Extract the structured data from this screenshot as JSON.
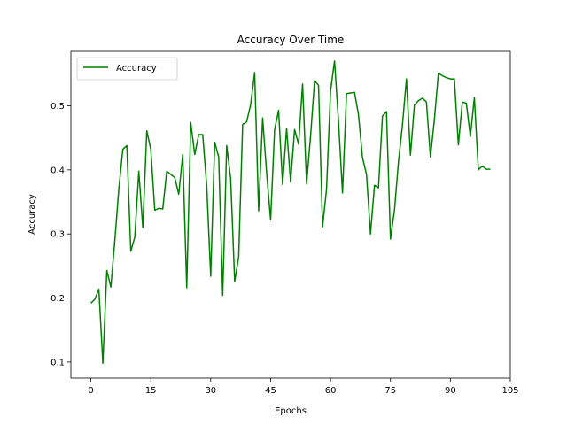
{
  "chart_data": {
    "type": "line",
    "title": "Accuracy Over Time",
    "xlabel": "Epochs",
    "ylabel": "Accuracy",
    "xlim": [
      -5,
      105
    ],
    "ylim": [
      0.075,
      0.585
    ],
    "xticks": [
      0,
      15,
      30,
      45,
      60,
      75,
      90,
      105
    ],
    "yticks": [
      0.1,
      0.2,
      0.3,
      0.4,
      0.5
    ],
    "ytick_labels": [
      "0.1",
      "0.2",
      "0.3",
      "0.4",
      "0.5"
    ],
    "legend": {
      "position": "top-left",
      "entries": [
        "Accuracy"
      ]
    },
    "grid": false,
    "colors": {
      "line": "#008000",
      "axis": "#000000"
    },
    "series": [
      {
        "name": "Accuracy",
        "x": [
          0,
          1,
          2,
          3,
          4,
          5,
          6,
          7,
          8,
          9,
          10,
          11,
          12,
          13,
          14,
          15,
          16,
          17,
          18,
          19,
          20,
          21,
          22,
          23,
          24,
          25,
          26,
          27,
          28,
          29,
          30,
          31,
          32,
          33,
          34,
          35,
          36,
          37,
          38,
          39,
          40,
          41,
          42,
          43,
          44,
          45,
          46,
          47,
          48,
          49,
          50,
          51,
          52,
          53,
          54,
          55,
          56,
          57,
          58,
          59,
          60,
          61,
          62,
          63,
          64,
          65,
          66,
          67,
          68,
          69,
          70,
          71,
          72,
          73,
          74,
          75,
          76,
          77,
          78,
          79,
          80,
          81,
          82,
          83,
          84,
          85,
          86,
          87,
          88,
          89,
          90,
          91,
          92,
          93,
          94,
          95,
          96,
          97,
          98,
          99,
          100
        ],
        "values": [
          0.192,
          0.198,
          0.214,
          0.098,
          0.243,
          0.217,
          0.29,
          0.37,
          0.432,
          0.438,
          0.273,
          0.295,
          0.398,
          0.31,
          0.461,
          0.432,
          0.337,
          0.34,
          0.339,
          0.398,
          0.393,
          0.388,
          0.362,
          0.424,
          0.216,
          0.474,
          0.424,
          0.455,
          0.455,
          0.375,
          0.234,
          0.443,
          0.42,
          0.204,
          0.438,
          0.386,
          0.226,
          0.264,
          0.471,
          0.475,
          0.502,
          0.552,
          0.336,
          0.481,
          0.395,
          0.322,
          0.463,
          0.493,
          0.377,
          0.465,
          0.381,
          0.463,
          0.44,
          0.534,
          0.378,
          0.453,
          0.539,
          0.532,
          0.311,
          0.37,
          0.523,
          0.57,
          0.475,
          0.364,
          0.519,
          0.52,
          0.521,
          0.486,
          0.419,
          0.393,
          0.3,
          0.376,
          0.372,
          0.484,
          0.491,
          0.292,
          0.337,
          0.412,
          0.47,
          0.542,
          0.423,
          0.501,
          0.508,
          0.512,
          0.506,
          0.42,
          0.479,
          0.551,
          0.547,
          0.544,
          0.542,
          0.542,
          0.439,
          0.506,
          0.504,
          0.452,
          0.513,
          0.4,
          0.406,
          0.401,
          0.401
        ]
      }
    ]
  }
}
